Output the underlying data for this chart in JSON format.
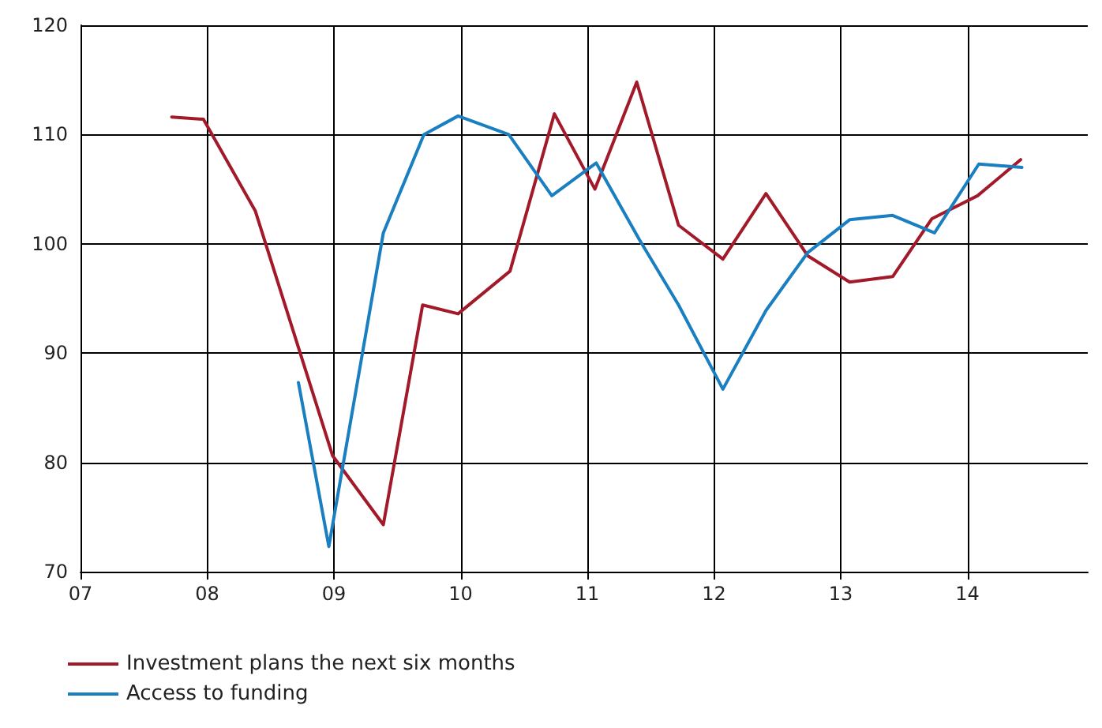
{
  "chart_data": {
    "type": "line",
    "xlim": [
      2007,
      2014.95
    ],
    "xticks": [
      {
        "value": 2007,
        "label": "07"
      },
      {
        "value": 2008,
        "label": "08"
      },
      {
        "value": 2009,
        "label": "09"
      },
      {
        "value": 2010,
        "label": "10"
      },
      {
        "value": 2011,
        "label": "11"
      },
      {
        "value": 2012,
        "label": "12"
      },
      {
        "value": 2013,
        "label": "13"
      },
      {
        "value": 2014,
        "label": "14"
      }
    ],
    "ylim": [
      70,
      120
    ],
    "yticks": [
      70,
      80,
      90,
      100,
      110,
      120
    ],
    "grid": true,
    "legend": "bottom left",
    "marker": "none",
    "line_style": "solid",
    "series": [
      {
        "name": "Investment plans the next six months",
        "color": "#a21a2a",
        "x": [
          2007.72,
          2007.97,
          2008.38,
          2008.99,
          2009.39,
          2009.7,
          2009.98,
          2010.39,
          2010.74,
          2011.06,
          2011.39,
          2011.72,
          2012.07,
          2012.41,
          2012.74,
          2013.07,
          2013.41,
          2013.72,
          2014.08,
          2014.42
        ],
        "values": [
          111.6,
          111.4,
          103,
          80.6,
          74.3,
          94.4,
          93.6,
          97.5,
          111.9,
          105,
          114.8,
          101.7,
          98.6,
          104.6,
          98.9,
          96.5,
          97,
          102.3,
          104.4,
          107.7
        ]
      },
      {
        "name": "Access to funding",
        "color": "#1a7fc1",
        "x": [
          2008.72,
          2008.96,
          2009.39,
          2009.71,
          2009.98,
          2010.38,
          2010.72,
          2011.07,
          2011.41,
          2011.72,
          2012.07,
          2012.41,
          2012.74,
          2013.07,
          2013.41,
          2013.74,
          2014.09,
          2014.43
        ],
        "values": [
          87.3,
          72.3,
          101,
          110,
          111.7,
          110,
          104.4,
          107.4,
          100.4,
          94.4,
          86.7,
          93.9,
          99.2,
          102.2,
          102.6,
          101,
          107.3,
          107
        ]
      }
    ]
  }
}
